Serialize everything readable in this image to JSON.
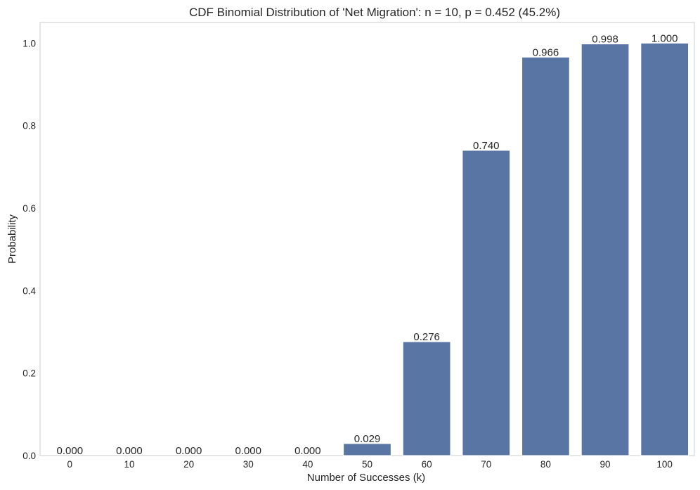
{
  "chart_data": {
    "type": "bar",
    "title": "CDF Binomial Distribution of 'Net Migration': n = 10, p = 0.452 (45.2%)",
    "xlabel": "Number of Successes (k)",
    "ylabel": "Probability",
    "categories": [
      "0",
      "10",
      "20",
      "30",
      "40",
      "50",
      "60",
      "70",
      "80",
      "90",
      "100"
    ],
    "values": [
      0.0,
      0.0,
      0.0,
      0.0,
      0.0,
      0.029,
      0.276,
      0.74,
      0.966,
      0.998,
      1.0
    ],
    "data_labels": [
      "0.000",
      "0.000",
      "0.000",
      "0.000",
      "0.000",
      "0.029",
      "0.276",
      "0.740",
      "0.966",
      "0.998",
      "1.000"
    ],
    "yticks": [
      0.0,
      0.2,
      0.4,
      0.6,
      0.8,
      1.0
    ],
    "ytick_labels": [
      "0.0",
      "0.2",
      "0.4",
      "0.6",
      "0.8",
      "1.0"
    ],
    "ylim": [
      0,
      1.05
    ],
    "grid": false,
    "bar_color": "#5975a4",
    "bar_edge_color": "#ffffff",
    "frame_color": "#cccccc"
  }
}
